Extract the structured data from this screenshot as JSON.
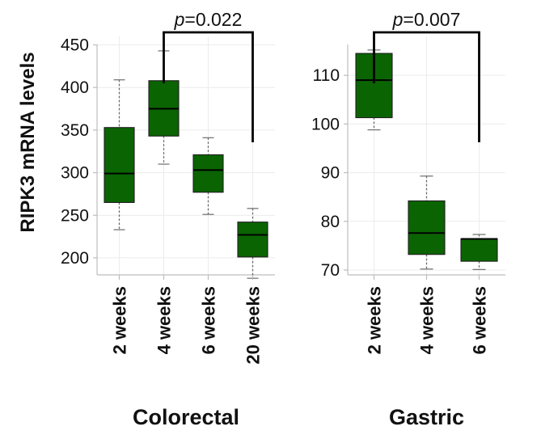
{
  "ylabel": "RIPK3 mRNA levels",
  "box_color": "#0a6402",
  "chart_data": [
    {
      "type": "box",
      "title": "Colorectal",
      "categories": [
        "2 weeks",
        "4 weeks",
        "6 weeks",
        "20 weeks"
      ],
      "yticks": [
        200,
        250,
        300,
        350,
        400,
        450
      ],
      "ylim": [
        180,
        460
      ],
      "boxes": [
        {
          "min": 233,
          "q1": 265,
          "median": 299,
          "q3": 353,
          "max": 409
        },
        {
          "min": 310,
          "q1": 343,
          "median": 375,
          "q3": 408,
          "max": 443
        },
        {
          "min": 251,
          "q1": 277,
          "median": 303,
          "q3": 321,
          "max": 341
        },
        {
          "min": 176,
          "q1": 201,
          "median": 227,
          "q3": 242,
          "max": 258
        }
      ],
      "comparison": {
        "from": "4 weeks",
        "to": "20 weeks",
        "label_prefix": "p",
        "label_value": "=0.022"
      },
      "grid": true
    },
    {
      "type": "box",
      "title": "Gastric",
      "categories": [
        "2 weeks",
        "4 weeks",
        "6 weeks"
      ],
      "yticks": [
        70,
        80,
        90,
        100,
        110
      ],
      "ylim": [
        69,
        118
      ],
      "boxes": [
        {
          "min": 98.8,
          "q1": 101.3,
          "median": 109,
          "q3": 114.5,
          "max": 115.2
        },
        {
          "min": 70.2,
          "q1": 73.2,
          "median": 77.6,
          "q3": 84.2,
          "max": 89.3
        },
        {
          "min": 70.1,
          "q1": 71.8,
          "median": 76.4,
          "q3": 76.4,
          "max": 77.3
        }
      ],
      "comparison": {
        "from": "2 weeks",
        "to": "6 weeks",
        "label_prefix": "p",
        "label_value": "=0.007"
      },
      "grid": true
    }
  ]
}
